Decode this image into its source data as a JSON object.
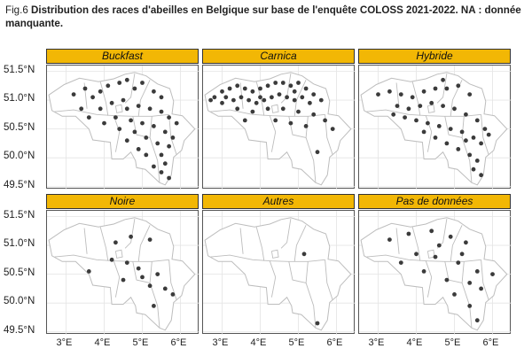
{
  "caption": {
    "fig_label": "Fig.6",
    "title": "Distribution des races d'abeilles en Belgique sur base de l'enquête COLOSS 2021-2022. NA : donnée manquante."
  },
  "colors": {
    "strip_fill": "#f2b705",
    "point": "#3b3b3b",
    "border": "#bdbdbd",
    "grid": "#e4e4e4"
  },
  "chart_data": {
    "type": "scatter",
    "facets": [
      "Buckfast",
      "Carnica",
      "Hybride",
      "Noire",
      "Autres",
      "Pas de données"
    ],
    "y_ticks": [
      "51.5°N",
      "51.0°N",
      "50.5°N",
      "50.0°N",
      "49.5°N"
    ],
    "x_ticks": [
      "3°E",
      "4°E",
      "5°E",
      "6°E"
    ],
    "xlim": [
      2.5,
      6.5
    ],
    "ylim": [
      49.45,
      51.6
    ],
    "grid": true,
    "series": [
      {
        "facet": "Buckfast",
        "points": [
          [
            3.2,
            51.1
          ],
          [
            3.5,
            51.2
          ],
          [
            3.7,
            51.05
          ],
          [
            3.9,
            51.15
          ],
          [
            4.1,
            51.25
          ],
          [
            4.4,
            51.3
          ],
          [
            4.6,
            51.35
          ],
          [
            4.8,
            51.2
          ],
          [
            5.0,
            51.3
          ],
          [
            5.3,
            51.15
          ],
          [
            5.5,
            51.05
          ],
          [
            4.5,
            51.0
          ],
          [
            4.2,
            50.95
          ],
          [
            3.9,
            50.85
          ],
          [
            4.6,
            50.85
          ],
          [
            4.9,
            50.9
          ],
          [
            5.2,
            50.85
          ],
          [
            5.5,
            50.8
          ],
          [
            5.7,
            50.7
          ],
          [
            5.9,
            50.6
          ],
          [
            4.3,
            50.7
          ],
          [
            4.7,
            50.65
          ],
          [
            5.0,
            50.6
          ],
          [
            5.3,
            50.55
          ],
          [
            5.6,
            50.45
          ],
          [
            4.4,
            50.5
          ],
          [
            4.8,
            50.45
          ],
          [
            5.1,
            50.35
          ],
          [
            5.4,
            50.25
          ],
          [
            5.7,
            50.2
          ],
          [
            5.5,
            50.05
          ],
          [
            5.6,
            49.9
          ],
          [
            5.5,
            49.75
          ],
          [
            5.7,
            49.65
          ],
          [
            4.6,
            50.3
          ],
          [
            4.9,
            50.15
          ],
          [
            3.6,
            50.7
          ],
          [
            3.4,
            50.85
          ],
          [
            4.0,
            50.6
          ],
          [
            5.8,
            50.35
          ],
          [
            5.3,
            49.85
          ],
          [
            5.1,
            50.05
          ]
        ]
      },
      {
        "facet": "Carnica",
        "points": [
          [
            2.8,
            51.05
          ],
          [
            3.0,
            51.15
          ],
          [
            3.2,
            51.2
          ],
          [
            3.4,
            51.25
          ],
          [
            3.6,
            51.2
          ],
          [
            3.8,
            51.15
          ],
          [
            4.0,
            51.2
          ],
          [
            4.2,
            51.25
          ],
          [
            4.4,
            51.3
          ],
          [
            4.6,
            51.3
          ],
          [
            4.8,
            51.25
          ],
          [
            5.0,
            51.3
          ],
          [
            5.2,
            51.2
          ],
          [
            5.4,
            51.1
          ],
          [
            5.6,
            51.0
          ],
          [
            3.0,
            50.95
          ],
          [
            3.3,
            51.0
          ],
          [
            3.5,
            51.05
          ],
          [
            3.7,
            51.0
          ],
          [
            3.9,
            50.95
          ],
          [
            4.1,
            51.0
          ],
          [
            4.3,
            51.05
          ],
          [
            4.5,
            51.1
          ],
          [
            4.7,
            51.05
          ],
          [
            4.9,
            51.0
          ],
          [
            5.1,
            51.05
          ],
          [
            5.3,
            50.95
          ],
          [
            3.4,
            50.85
          ],
          [
            3.8,
            50.8
          ],
          [
            4.2,
            50.85
          ],
          [
            4.6,
            50.85
          ],
          [
            5.0,
            50.8
          ],
          [
            5.4,
            50.75
          ],
          [
            5.7,
            50.65
          ],
          [
            4.4,
            50.65
          ],
          [
            4.8,
            50.6
          ],
          [
            5.2,
            50.55
          ],
          [
            3.6,
            50.65
          ],
          [
            5.9,
            50.5
          ],
          [
            5.5,
            50.1
          ],
          [
            2.7,
            51.0
          ],
          [
            3.1,
            51.05
          ],
          [
            4.0,
            51.05
          ],
          [
            4.9,
            51.15
          ]
        ]
      },
      {
        "facet": "Hybride",
        "points": [
          [
            3.0,
            51.1
          ],
          [
            3.3,
            51.15
          ],
          [
            3.6,
            51.1
          ],
          [
            3.9,
            51.05
          ],
          [
            4.2,
            51.15
          ],
          [
            4.5,
            51.2
          ],
          [
            4.8,
            51.2
          ],
          [
            5.1,
            51.25
          ],
          [
            5.4,
            51.1
          ],
          [
            3.5,
            50.9
          ],
          [
            3.8,
            50.85
          ],
          [
            4.1,
            50.9
          ],
          [
            4.4,
            50.95
          ],
          [
            4.7,
            50.9
          ],
          [
            5.0,
            50.85
          ],
          [
            5.3,
            50.75
          ],
          [
            5.6,
            50.65
          ],
          [
            5.8,
            50.5
          ],
          [
            3.7,
            50.7
          ],
          [
            4.0,
            50.65
          ],
          [
            4.3,
            50.6
          ],
          [
            4.6,
            50.55
          ],
          [
            4.9,
            50.5
          ],
          [
            5.2,
            50.45
          ],
          [
            5.5,
            50.35
          ],
          [
            5.7,
            50.25
          ],
          [
            4.5,
            50.35
          ],
          [
            4.8,
            50.25
          ],
          [
            5.1,
            50.15
          ],
          [
            5.4,
            50.05
          ],
          [
            5.6,
            49.95
          ],
          [
            5.5,
            49.8
          ],
          [
            5.7,
            49.7
          ],
          [
            5.3,
            50.3
          ],
          [
            5.9,
            50.4
          ],
          [
            4.2,
            50.45
          ],
          [
            3.4,
            50.75
          ],
          [
            4.7,
            51.35
          ]
        ]
      },
      {
        "facet": "Noire",
        "points": [
          [
            4.3,
            51.05
          ],
          [
            4.7,
            51.15
          ],
          [
            5.2,
            51.1
          ],
          [
            4.2,
            50.75
          ],
          [
            4.6,
            50.7
          ],
          [
            4.9,
            50.6
          ],
          [
            5.4,
            50.5
          ],
          [
            5.2,
            50.3
          ],
          [
            4.5,
            50.4
          ],
          [
            5.6,
            50.25
          ],
          [
            3.6,
            50.55
          ],
          [
            5.0,
            50.45
          ],
          [
            5.8,
            50.15
          ],
          [
            5.3,
            49.95
          ]
        ]
      },
      {
        "facet": "Autres",
        "points": [
          [
            5.15,
            50.85
          ],
          [
            5.5,
            49.65
          ]
        ]
      },
      {
        "facet": "Pas de données",
        "points": [
          [
            3.3,
            51.1
          ],
          [
            3.8,
            51.2
          ],
          [
            4.4,
            51.25
          ],
          [
            4.9,
            51.15
          ],
          [
            5.3,
            51.05
          ],
          [
            4.0,
            50.85
          ],
          [
            4.5,
            50.8
          ],
          [
            5.1,
            50.7
          ],
          [
            5.6,
            50.55
          ],
          [
            6.0,
            50.5
          ],
          [
            4.2,
            50.55
          ],
          [
            5.4,
            50.35
          ],
          [
            5.7,
            50.25
          ],
          [
            5.0,
            50.15
          ],
          [
            5.4,
            49.95
          ],
          [
            5.6,
            49.7
          ],
          [
            4.8,
            50.4
          ],
          [
            3.6,
            50.7
          ],
          [
            5.2,
            50.85
          ],
          [
            4.6,
            51.0
          ]
        ]
      }
    ]
  }
}
